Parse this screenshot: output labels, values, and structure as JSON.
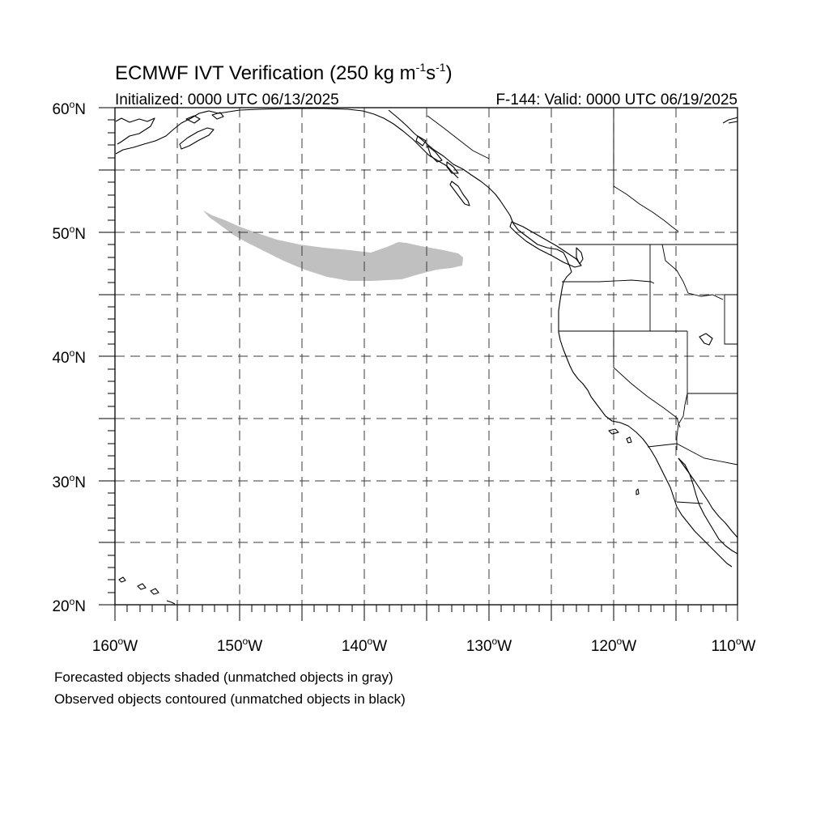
{
  "title_main": "ECMWF IVT Verification (250 kg m",
  "title_sup1": "-1",
  "title_mid": "s",
  "title_sup2": "-1",
  "title_end": ")",
  "initialized": "Initialized: 0000 UTC 06/13/2025",
  "valid": "F-144: Valid: 0000 UTC 06/19/2025",
  "lat_labels": [
    "60",
    "50",
    "40",
    "30",
    "20"
  ],
  "lat_suffix": "N",
  "lon_labels": [
    "160",
    "150",
    "140",
    "130",
    "120",
    "110"
  ],
  "lon_suffix": "W",
  "degree_symbol": "o",
  "legend": {
    "line1": "Forecasted objects shaded (unmatched objects in gray)",
    "line2": "Observed objects contoured (unmatched objects in black)"
  },
  "map": {
    "lon_range": [
      -160,
      -110
    ],
    "lat_range": [
      20,
      60
    ],
    "grid_spacing_deg": 5,
    "gridlines": "dashed",
    "forecast_object_color": "#c0c0c0",
    "coastline_color": "#000000"
  }
}
